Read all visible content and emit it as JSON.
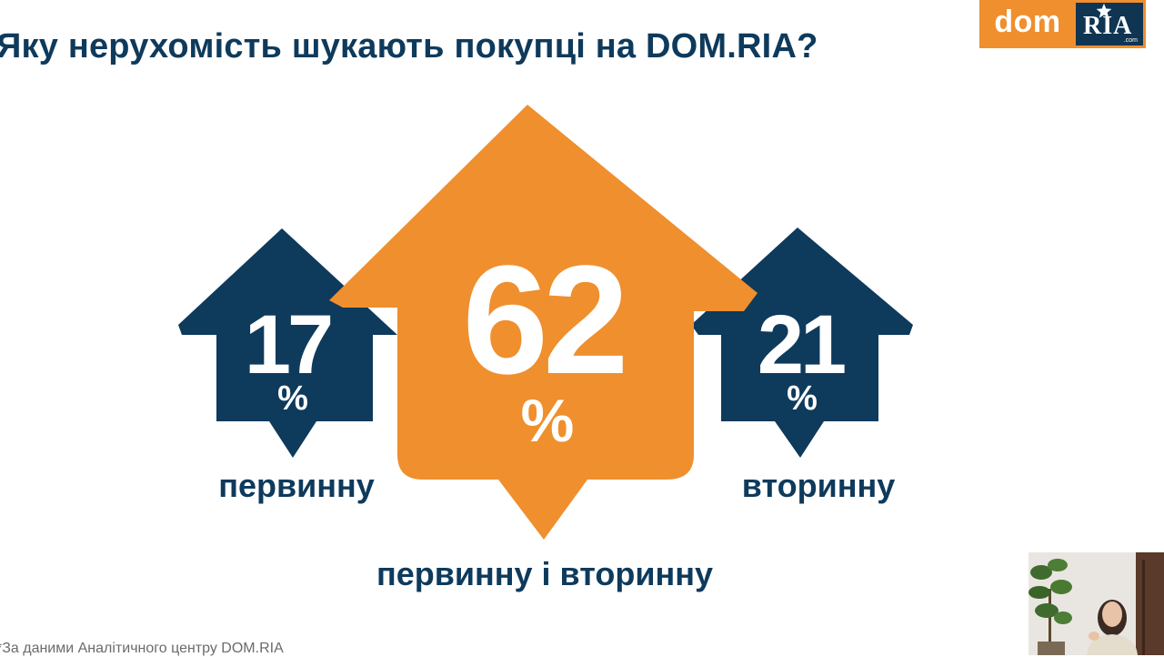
{
  "title": "Яку нерухомість шукають покупці на DOM.RIA?",
  "logo": {
    "left_text": "dom",
    "right_text": "RIA",
    "sub_text": ".com"
  },
  "footnote": "*За даними Аналітичного центру DOM.RIA",
  "colors": {
    "navy": "#0e3a5c",
    "orange": "#ef8f2e",
    "white": "#ffffff"
  },
  "chart_data": {
    "type": "pictogram",
    "title": "Яку нерухомість шукають покупці на DOM.RIA?",
    "unit": "%",
    "categories": [
      "первинну",
      "первинну і вторинну",
      "вторинну"
    ],
    "values": [
      17,
      62,
      21
    ]
  },
  "webcam": {
    "label": "presenter-webcam"
  }
}
